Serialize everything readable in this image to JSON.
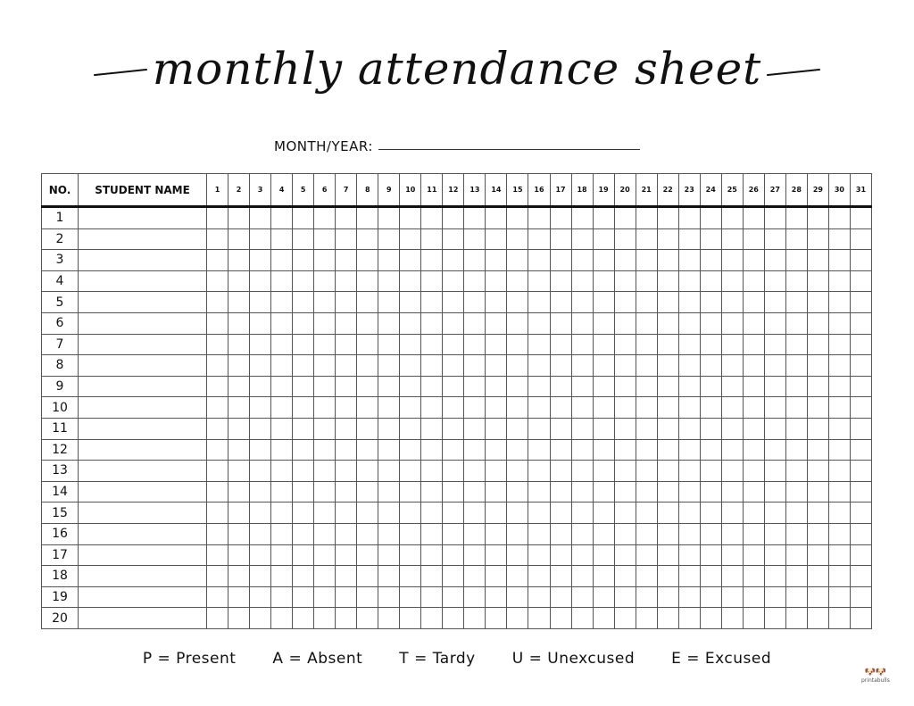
{
  "title": "monthly attendance sheet",
  "month_year_label": "MONTH/YEAR:",
  "table": {
    "headers": {
      "no": "NO.",
      "name": "STUDENT NAME"
    },
    "days": [
      "1",
      "2",
      "3",
      "4",
      "5",
      "6",
      "7",
      "8",
      "9",
      "10",
      "11",
      "12",
      "13",
      "14",
      "15",
      "16",
      "17",
      "18",
      "19",
      "20",
      "21",
      "22",
      "23",
      "24",
      "25",
      "26",
      "27",
      "28",
      "29",
      "30",
      "31"
    ],
    "rows": [
      "1",
      "2",
      "3",
      "4",
      "5",
      "6",
      "7",
      "8",
      "9",
      "10",
      "11",
      "12",
      "13",
      "14",
      "15",
      "16",
      "17",
      "18",
      "19",
      "20"
    ]
  },
  "legend": [
    "P = Present",
    "A = Absent",
    "T = Tardy",
    "U = Unexcused",
    "E = Excused"
  ],
  "logo": {
    "text": "printabulls"
  }
}
